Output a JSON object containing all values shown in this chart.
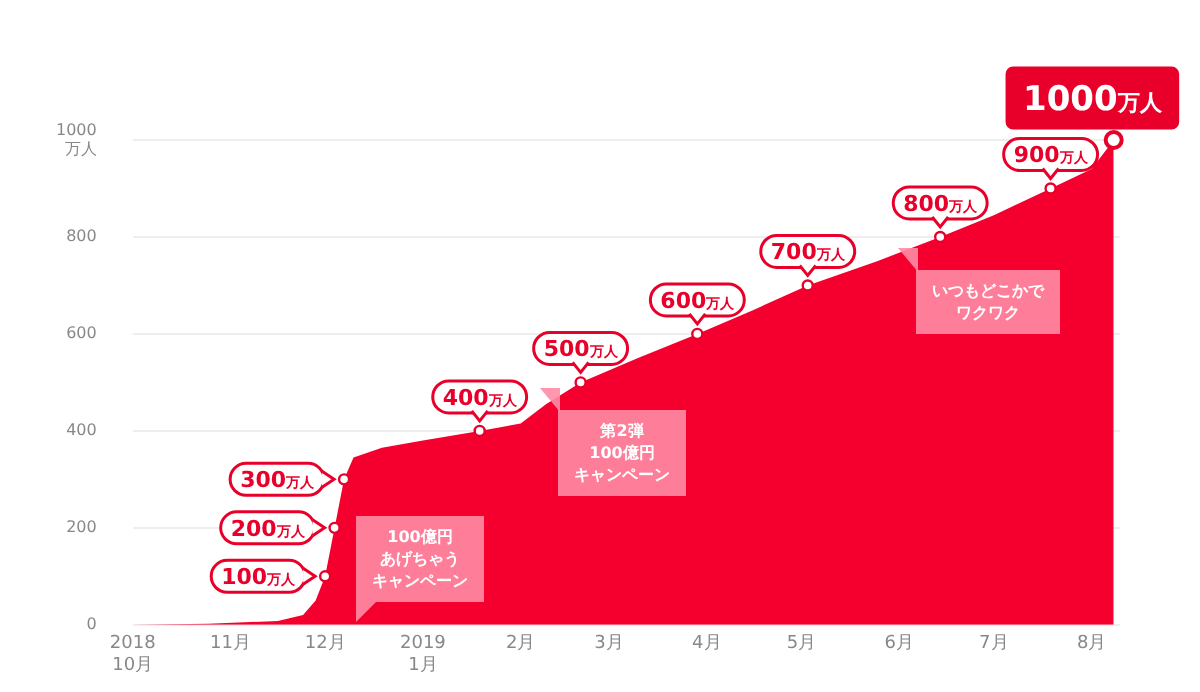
{
  "chart_data": {
    "type": "area",
    "x": [
      "2018-10-01",
      "2018-10-25",
      "2018-11-16",
      "2018-11-24",
      "2018-11-28",
      "2018-12-01",
      "2018-12-04",
      "2018-12-07",
      "2018-12-10",
      "2018-12-19",
      "2019-01-01",
      "2019-01-19",
      "2019-02-01",
      "2019-02-09",
      "2019-02-20",
      "2019-03-10",
      "2019-03-29",
      "2019-04-16",
      "2019-05-03",
      "2019-05-25",
      "2019-06-14",
      "2019-07-01",
      "2019-07-19",
      "2019-08-01",
      "2019-08-08"
    ],
    "series": [
      {
        "color": "#f5002e",
        "values": [
          0,
          2,
          8,
          20,
          50,
          100,
          200,
          300,
          345,
          365,
          380,
          400,
          415,
          455,
          500,
          550,
          600,
          650,
          700,
          750,
          800,
          845,
          900,
          940,
          1000
        ]
      }
    ],
    "xlim": [
      "2018-10-01",
      "2019-08-10"
    ],
    "xticks": [
      {
        "value": "2018-10",
        "label": "2018\n10月"
      },
      {
        "value": "2018-11",
        "label": "11月"
      },
      {
        "value": "2018-12",
        "label": "12月"
      },
      {
        "value": "2019-01",
        "label": "2019\n1月"
      },
      {
        "value": "2019-02",
        "label": "2月"
      },
      {
        "value": "2019-03",
        "label": "3月"
      },
      {
        "value": "2019-04",
        "label": "4月"
      },
      {
        "value": "2019-05",
        "label": "5月"
      },
      {
        "value": "2019-06",
        "label": "6月"
      },
      {
        "value": "2019-07",
        "label": "7月"
      },
      {
        "value": "2019-08",
        "label": "8月"
      }
    ],
    "ylim": [
      0,
      1000
    ],
    "yticks": [
      0,
      200,
      400,
      600,
      800,
      {
        "value": 1000,
        "label": "1000\n万人"
      }
    ],
    "grid": "y",
    "legend": false,
    "annotations": [
      {
        "text": "100万人",
        "x": "2018-12-01",
        "y": 100
      },
      {
        "text": "200万人",
        "x": "2018-12-04",
        "y": 200
      },
      {
        "text": "300万人",
        "x": "2018-12-07",
        "y": 300
      },
      {
        "text": "400万人",
        "x": "2019-01-19",
        "y": 400
      },
      {
        "text": "500万人",
        "x": "2019-02-20",
        "y": 500
      },
      {
        "text": "600万人",
        "x": "2019-03-29",
        "y": 600
      },
      {
        "text": "700万人",
        "x": "2019-05-03",
        "y": 700
      },
      {
        "text": "800万人",
        "x": "2019-06-14",
        "y": 800
      },
      {
        "text": "900万人",
        "x": "2019-07-19",
        "y": 900
      },
      {
        "text": "1000万人",
        "x": "2019-08-08",
        "y": 1000
      },
      "100億円あげちゃうキャンペーン",
      "第2弾100億円キャンペーン",
      "いつもどこかでワクワク"
    ]
  }
}
